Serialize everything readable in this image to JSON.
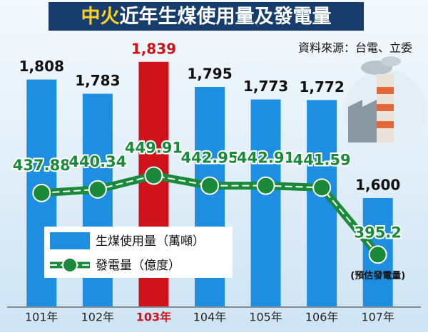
{
  "chart_data": {
    "type": "bar",
    "title": [
      "中火",
      "近年生煤使用量及發電量"
    ],
    "source": "資料來源：台電、立委",
    "categories": [
      "101年",
      "102年",
      "103年",
      "104年",
      "105年",
      "106年",
      "107年"
    ],
    "category_colors": [
      "#222222",
      "#222222",
      "#d0121b",
      "#222222",
      "#222222",
      "#222222",
      "#222222"
    ],
    "series": [
      {
        "name": "生煤使用量（萬噸）",
        "type": "bar",
        "colors": [
          "#1e8fe0",
          "#1e8fe0",
          "#d0121b",
          "#1e8fe0",
          "#1e8fe0",
          "#1e8fe0",
          "#1e8fe0"
        ],
        "values": [
          1808,
          1783,
          1839,
          1795,
          1773,
          1772,
          1600
        ],
        "value_labels": [
          "1,808",
          "1,783",
          "1,839",
          "1,795",
          "1,773",
          "1,772",
          "1,600"
        ]
      },
      {
        "name": "發電量（億度）",
        "type": "line",
        "axis": "y2",
        "color": "#1a8a3a",
        "values": [
          437.88,
          440.34,
          449.91,
          442.95,
          442.91,
          441.59,
          395.2
        ]
      }
    ],
    "annotation": "(預估發電量)",
    "ylim": [
      1400,
      1900
    ],
    "y2lim": [
      350,
      460
    ]
  }
}
